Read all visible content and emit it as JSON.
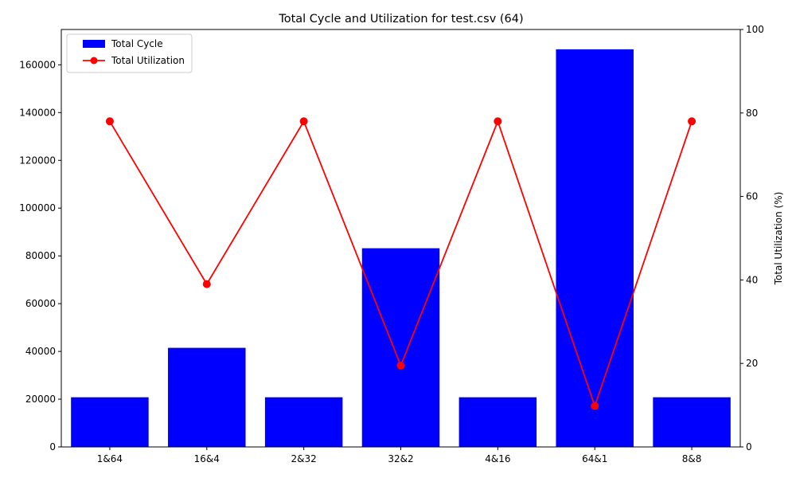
{
  "chart_data": {
    "type": "bar",
    "title": "Total Cycle and Utilization for test.csv (64)",
    "categories": [
      "1&64",
      "16&4",
      "2&32",
      "32&2",
      "4&16",
      "64&1",
      "8&8"
    ],
    "series": [
      {
        "name": "Total Cycle",
        "type": "bar",
        "axis": "left",
        "color": "#0000ff",
        "values": [
          20800,
          41500,
          20800,
          83200,
          20800,
          166500,
          20800
        ]
      },
      {
        "name": "Total Utilization",
        "type": "line",
        "axis": "right",
        "color": "#ff0000",
        "marker": "circle",
        "values": [
          78,
          39,
          78,
          19.5,
          78,
          9.8,
          78
        ]
      }
    ],
    "y_left": {
      "label": "",
      "lim": [
        0,
        174800
      ],
      "ticks": [
        0,
        20000,
        40000,
        60000,
        80000,
        100000,
        120000,
        140000,
        160000
      ],
      "tick_labels": [
        "0",
        "20000",
        "40000",
        "60000",
        "80000",
        "100000",
        "120000",
        "140000",
        "160000"
      ]
    },
    "y_right": {
      "label": "Total Utilization (%)",
      "lim": [
        0,
        100
      ],
      "ticks": [
        0,
        20,
        40,
        60,
        80,
        100
      ],
      "tick_labels": [
        "0",
        "20",
        "40",
        "60",
        "80",
        "100"
      ]
    },
    "xlabel": "",
    "grid": false,
    "legend": {
      "placement": "upper-left",
      "entries": [
        "Total Cycle",
        "Total Utilization"
      ]
    }
  }
}
